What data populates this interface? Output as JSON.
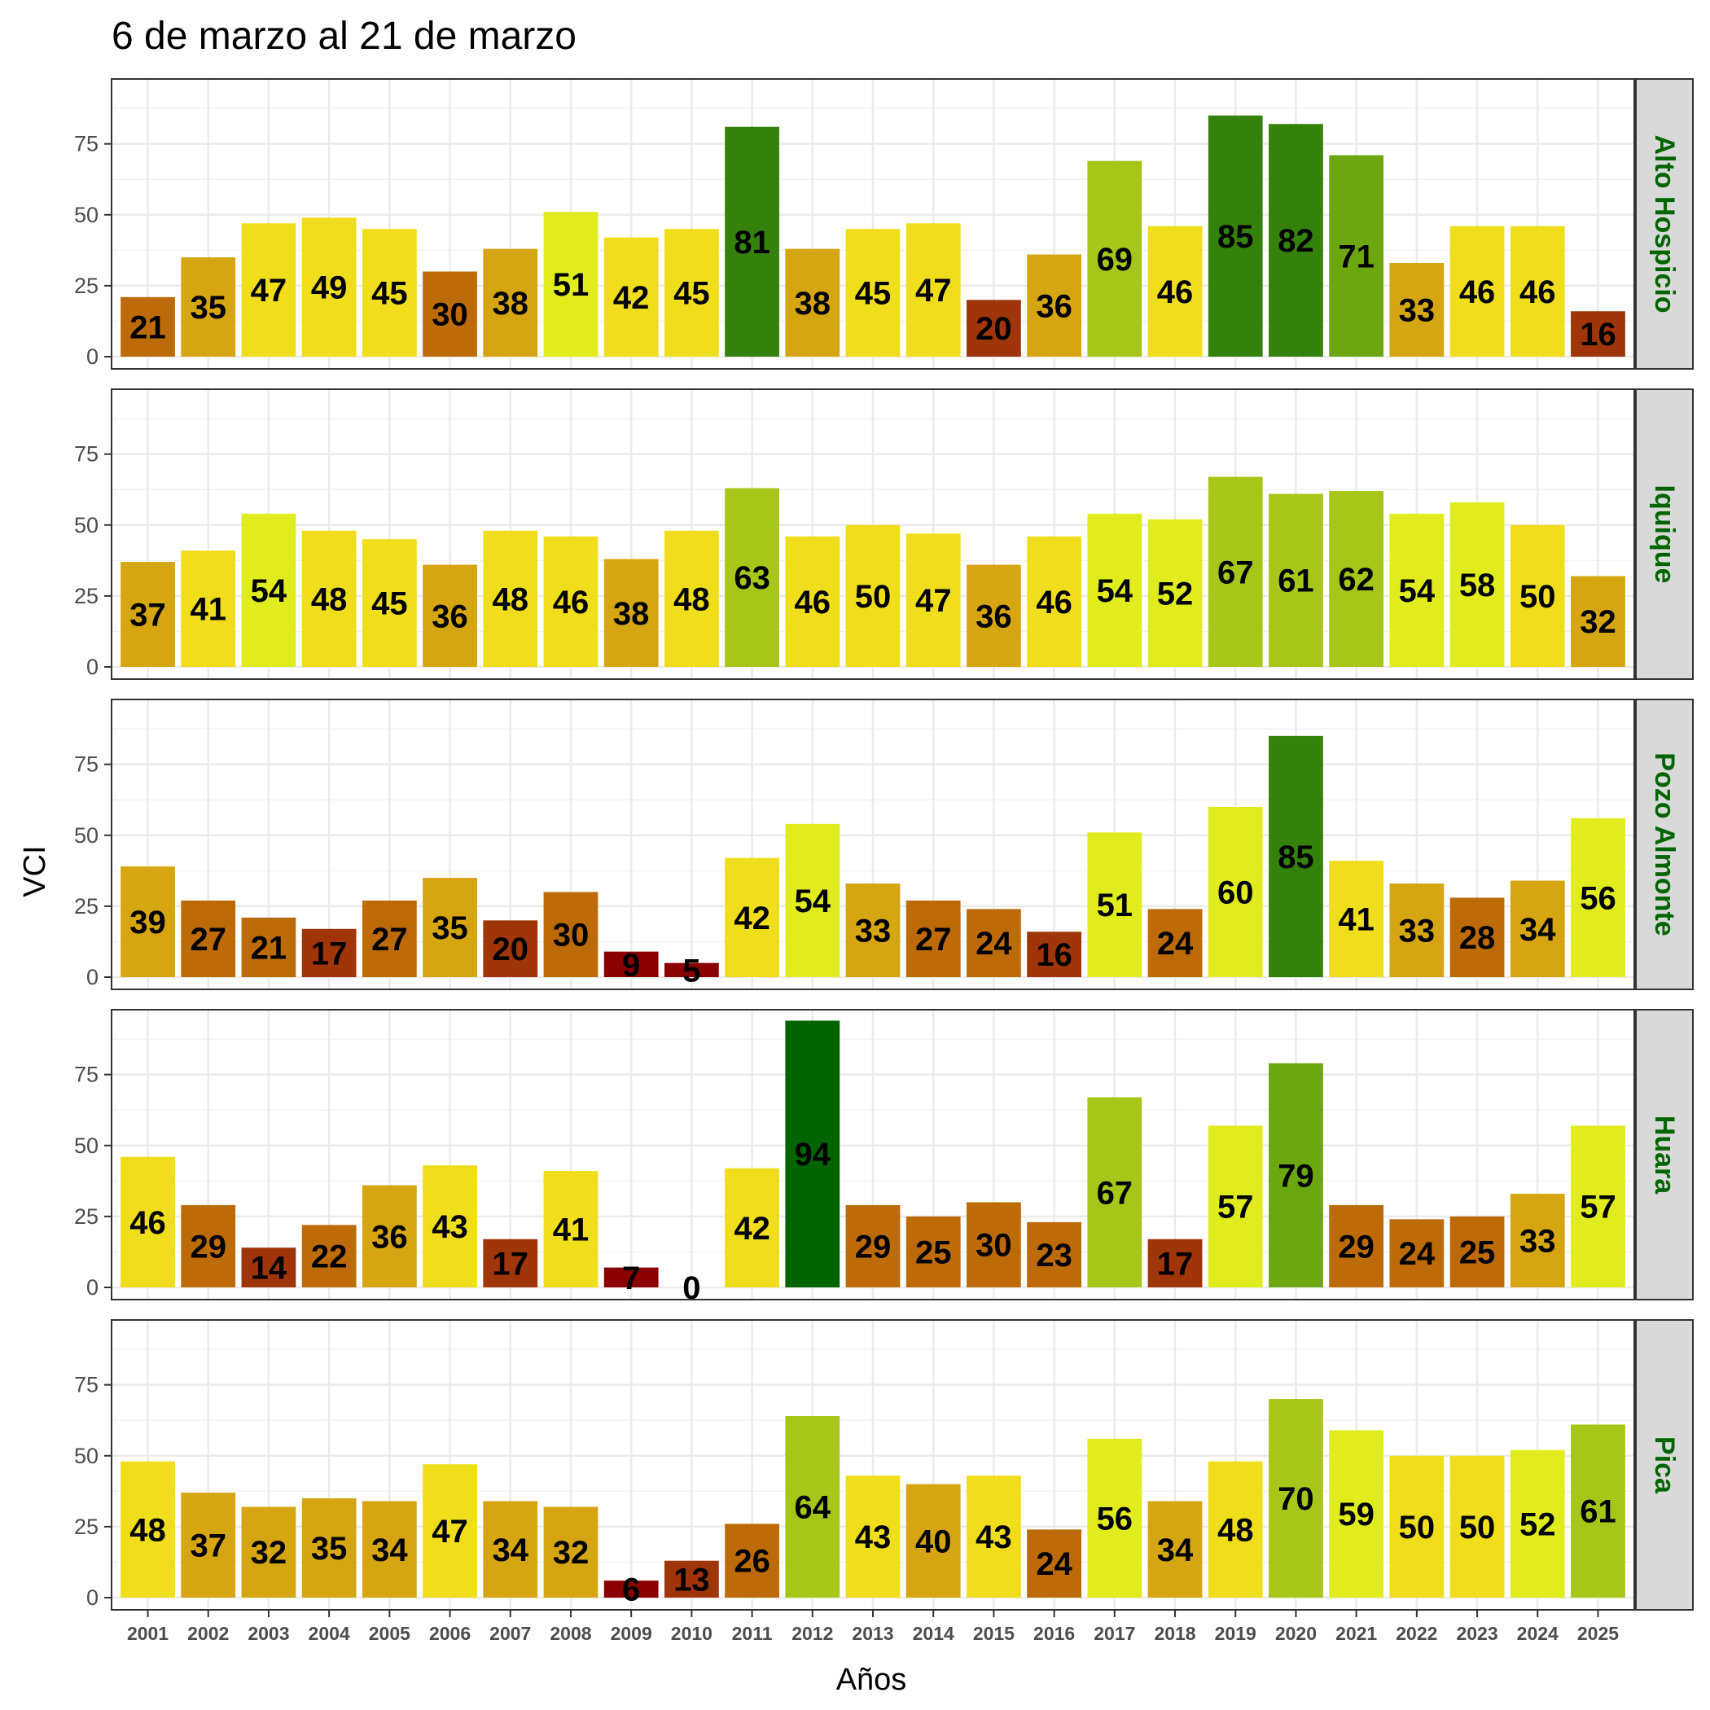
{
  "chart_data": {
    "type": "bar",
    "title": "6 de marzo al 21 de marzo",
    "xlabel": "Años",
    "ylabel": "VCI",
    "ylim": [
      0,
      97
    ],
    "yticks": [
      0,
      25,
      50,
      75
    ],
    "grid": true,
    "categories": [
      "2001",
      "2002",
      "2003",
      "2004",
      "2005",
      "2006",
      "2007",
      "2008",
      "2009",
      "2010",
      "2011",
      "2012",
      "2013",
      "2014",
      "2015",
      "2016",
      "2017",
      "2018",
      "2019",
      "2020",
      "2021",
      "2022",
      "2023",
      "2024",
      "2025"
    ],
    "facets": [
      {
        "name": "Alto Hospicio",
        "values": [
          21,
          35,
          47,
          49,
          45,
          30,
          38,
          51,
          42,
          45,
          81,
          38,
          45,
          47,
          20,
          36,
          69,
          46,
          85,
          82,
          71,
          33,
          46,
          46,
          16
        ]
      },
      {
        "name": "Iquique",
        "values": [
          37,
          41,
          54,
          48,
          45,
          36,
          48,
          46,
          38,
          48,
          63,
          46,
          50,
          47,
          36,
          46,
          54,
          52,
          67,
          61,
          62,
          54,
          58,
          50,
          32
        ]
      },
      {
        "name": "Pozo Almonte",
        "values": [
          39,
          27,
          21,
          17,
          27,
          35,
          20,
          30,
          9,
          5,
          42,
          54,
          33,
          27,
          24,
          16,
          51,
          24,
          60,
          85,
          41,
          33,
          28,
          34,
          56
        ]
      },
      {
        "name": "Huara",
        "values": [
          46,
          29,
          14,
          22,
          36,
          43,
          17,
          41,
          7,
          0,
          42,
          94,
          29,
          25,
          30,
          23,
          67,
          17,
          57,
          79,
          29,
          24,
          25,
          33,
          57
        ]
      },
      {
        "name": "Pica",
        "values": [
          48,
          37,
          32,
          35,
          34,
          47,
          34,
          32,
          6,
          13,
          26,
          64,
          43,
          40,
          43,
          24,
          56,
          34,
          48,
          70,
          59,
          50,
          50,
          52,
          61
        ]
      }
    ],
    "color_scale": [
      {
        "max": 10,
        "color": "#8b0000"
      },
      {
        "max": 20,
        "color": "#a0350a"
      },
      {
        "max": 30,
        "color": "#bd6b08"
      },
      {
        "max": 40,
        "color": "#d6a612"
      },
      {
        "max": 50,
        "color": "#f0de1c"
      },
      {
        "max": 60,
        "color": "#e1ec1e"
      },
      {
        "max": 70,
        "color": "#a6c71a"
      },
      {
        "max": 80,
        "color": "#6ca712"
      },
      {
        "max": 90,
        "color": "#34820c"
      },
      {
        "max": 100,
        "color": "#006400"
      }
    ]
  }
}
